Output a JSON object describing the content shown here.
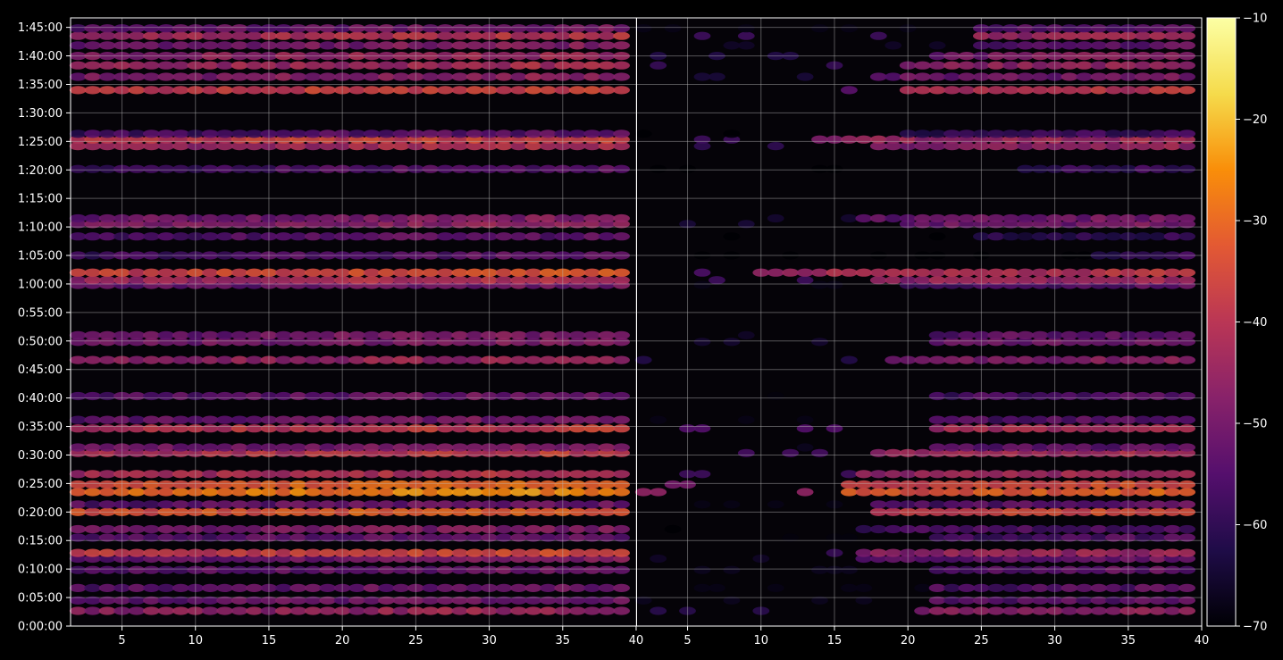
{
  "chart_data": {
    "type": "heatmap",
    "title": "",
    "xlabel": "",
    "ylabel": "",
    "background": "#000000",
    "colormap": "inferno",
    "grid": true,
    "y_time_labels": [
      "0:00:00",
      "0:05:00",
      "0:10:00",
      "0:15:00",
      "0:20:00",
      "0:25:00",
      "0:30:00",
      "0:35:00",
      "0:40:00",
      "0:45:00",
      "0:50:00",
      "0:55:00",
      "1:00:00",
      "1:05:00",
      "1:10:00",
      "1:15:00",
      "1:20:00",
      "1:25:00",
      "1:30:00",
      "1:35:00",
      "1:40:00",
      "1:45:00"
    ],
    "ylim_seconds": [
      0,
      6400
    ],
    "panels": [
      {
        "name": "left",
        "xlim": [
          1.5,
          40
        ],
        "xticks": [
          5,
          10,
          15,
          20,
          25,
          30,
          35,
          40
        ],
        "data_x_range": [
          2,
          39
        ],
        "x_step": 1
      },
      {
        "name": "right",
        "xlim": [
          1.5,
          40
        ],
        "xticks": [
          5,
          10,
          15,
          20,
          25,
          30,
          35,
          40
        ],
        "data_x_range": [
          2,
          39
        ],
        "x_step": 1
      }
    ],
    "colorbar": {
      "min": -70,
      "max": -10,
      "ticks": [
        -10,
        -20,
        -30,
        -40,
        -50,
        -60,
        -70
      ]
    },
    "bands": [
      {
        "time": 160,
        "left": -48,
        "right": -49,
        "right_start": 21
      },
      {
        "time": 270,
        "left": -54,
        "right": -55,
        "right_start": 22
      },
      {
        "time": 400,
        "left": -55,
        "right": -56,
        "right_start": 22
      },
      {
        "time": 590,
        "left": -55,
        "right": -55,
        "right_start": 22
      },
      {
        "time": 710,
        "left": -53,
        "right": -54,
        "right_start": 17
      },
      {
        "time": 770,
        "left": -40,
        "right": -47,
        "right_start": 17
      },
      {
        "time": 930,
        "left": -56,
        "right": -57,
        "right_start": 22
      },
      {
        "time": 1020,
        "left": -52,
        "right": -58,
        "right_start": 17
      },
      {
        "time": 1200,
        "left": -35,
        "right": -38,
        "right_start": 18
      },
      {
        "time": 1280,
        "left": -55,
        "right": -56,
        "right_start": 18
      },
      {
        "time": 1410,
        "left": -30,
        "right": -34,
        "right_start": 16
      },
      {
        "time": 1490,
        "left": -34,
        "right": -38,
        "right_start": 16
      },
      {
        "time": 1600,
        "left": -44,
        "right": -46,
        "right_start": 17
      },
      {
        "time": 1820,
        "left": -42,
        "right": -45,
        "right_start": 18
      },
      {
        "time": 1880,
        "left": -52,
        "right": -55,
        "right_start": 22
      },
      {
        "time": 2080,
        "left": -42,
        "right": -43,
        "right_start": 22
      },
      {
        "time": 2170,
        "left": -54,
        "right": -56,
        "right_start": 22
      },
      {
        "time": 2420,
        "left": -55,
        "right": -57,
        "right_start": 22
      },
      {
        "time": 2800,
        "left": -48,
        "right": -50,
        "right_start": 19
      },
      {
        "time": 2990,
        "left": -52,
        "right": -53,
        "right_start": 22
      },
      {
        "time": 3060,
        "left": -53,
        "right": -54,
        "right_start": 22
      },
      {
        "time": 3590,
        "left": -54,
        "right": -56,
        "right_start": 20
      },
      {
        "time": 3640,
        "left": -45,
        "right": -46,
        "right_start": 18
      },
      {
        "time": 3720,
        "left": -38,
        "right": -44,
        "right_start": 10
      },
      {
        "time": 3900,
        "left": -58,
        "right": -60,
        "right_start": 33
      },
      {
        "time": 4100,
        "left": -57,
        "right": -62,
        "right_start": 25
      },
      {
        "time": 4230,
        "left": -50,
        "right": -52,
        "right_start": 20
      },
      {
        "time": 4290,
        "left": -52,
        "right": -53,
        "right_start": 17
      },
      {
        "time": 4810,
        "left": -58,
        "right": -60,
        "right_start": 28
      },
      {
        "time": 5050,
        "left": -46,
        "right": -48,
        "right_start": 18
      },
      {
        "time": 5120,
        "left": -40,
        "right": -46,
        "right_start": 14
      },
      {
        "time": 5180,
        "left": -58,
        "right": -60,
        "right_start": 20
      },
      {
        "time": 5640,
        "left": -40,
        "right": -42,
        "right_start": 20
      },
      {
        "time": 5780,
        "left": -50,
        "right": -52,
        "right_start": 18
      },
      {
        "time": 5900,
        "left": -46,
        "right": -47,
        "right_start": 20
      },
      {
        "time": 6000,
        "left": -48,
        "right": -50,
        "right_start": 22
      },
      {
        "time": 6110,
        "left": -52,
        "right": -54,
        "right_start": 25
      },
      {
        "time": 6210,
        "left": -44,
        "right": -46,
        "right_start": 25
      },
      {
        "time": 6290,
        "left": -54,
        "right": -56,
        "right_start": 25
      }
    ]
  }
}
